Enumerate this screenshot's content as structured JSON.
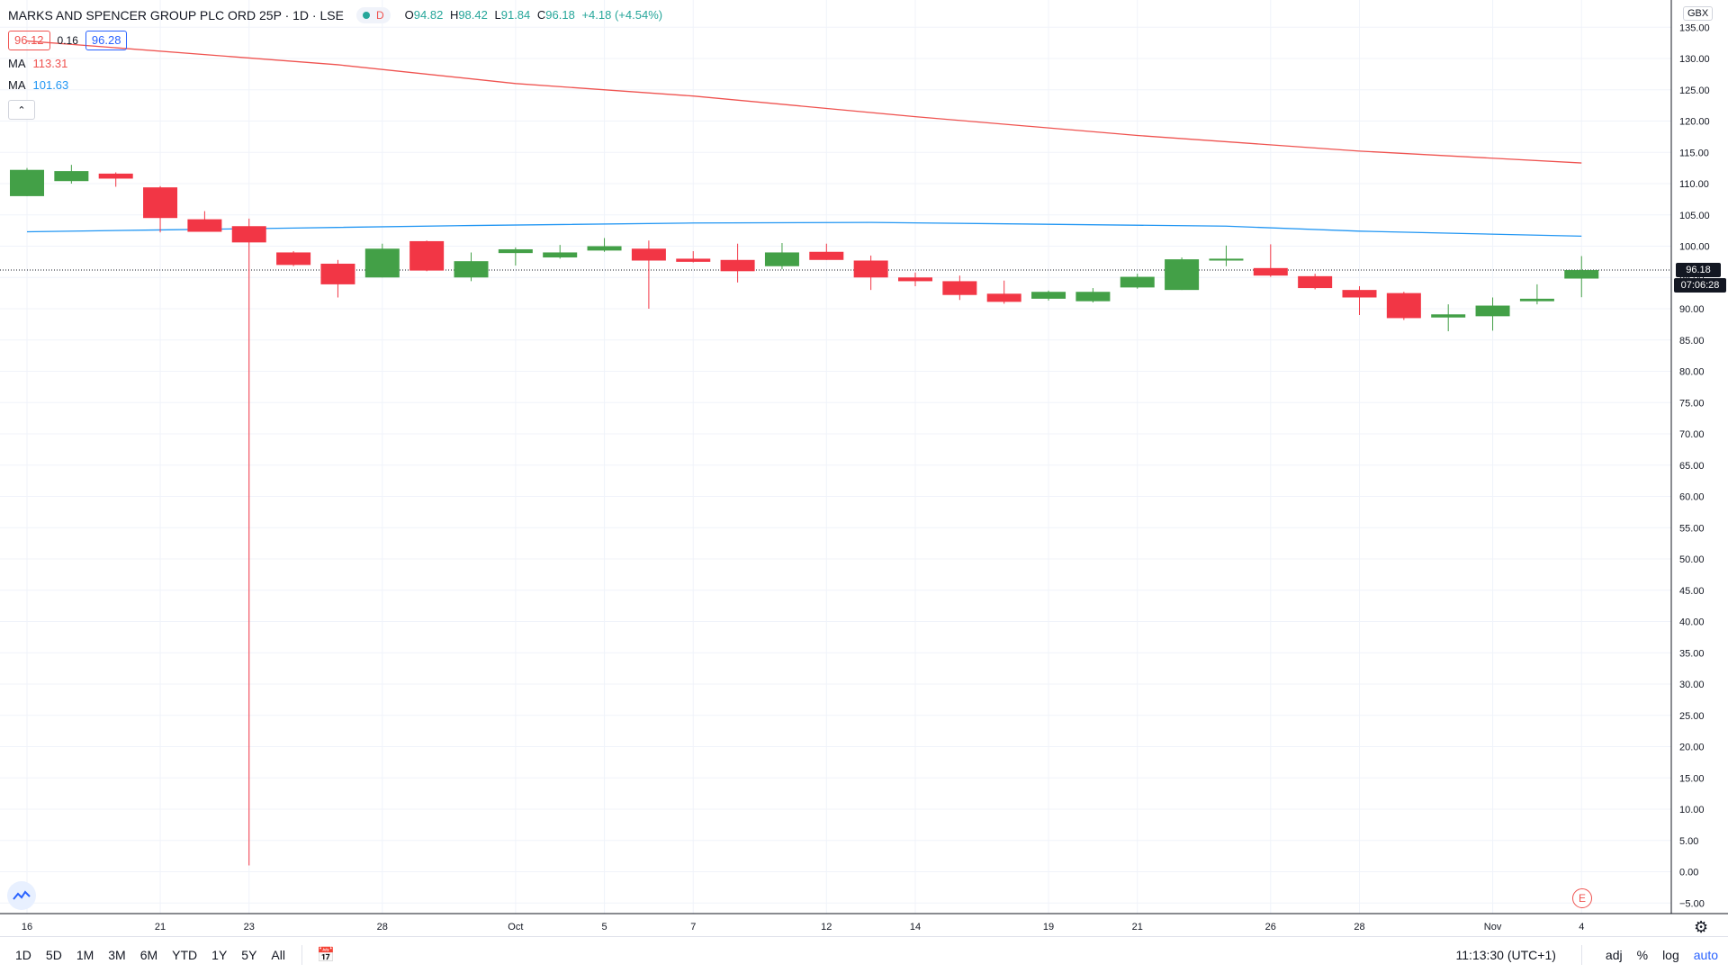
{
  "header": {
    "symbol": "MARKS AND SPENCER GROUP PLC ORD 25P",
    "interval": "1D",
    "exchange": "LSE",
    "market_status_letter": "D",
    "ohlc": {
      "o_label": "O",
      "o": "94.82",
      "h_label": "H",
      "h": "98.42",
      "l_label": "L",
      "l": "91.84",
      "c_label": "C",
      "c": "96.18",
      "change": "+4.18 (+4.54%)"
    },
    "bid": "96.12",
    "spread": "0.16",
    "ask": "96.28",
    "ma1": {
      "label": "MA",
      "value": "113.31",
      "color": "#ef5350"
    },
    "ma2": {
      "label": "MA",
      "value": "101.63",
      "color": "#2196f3"
    }
  },
  "price_axis": {
    "currency": "GBX",
    "last_price": "96.18",
    "countdown": "07:06:28"
  },
  "earnings_marker": "E",
  "bottom_bar": {
    "ranges": [
      "1D",
      "5D",
      "1M",
      "3M",
      "6M",
      "YTD",
      "1Y",
      "5Y",
      "All"
    ],
    "time": "11:13:30 (UTC+1)",
    "tools": {
      "adj": "adj",
      "pct": "%",
      "log": "log",
      "auto": "auto"
    }
  },
  "chart_data": {
    "type": "candlestick",
    "y_ticks": [
      "135.00",
      "130.00",
      "125.00",
      "120.00",
      "115.00",
      "110.00",
      "105.00",
      "100.00",
      "95.00",
      "90.00",
      "85.00",
      "80.00",
      "75.00",
      "70.00",
      "65.00",
      "60.00",
      "55.00",
      "50.00",
      "45.00",
      "40.00",
      "35.00",
      "30.00",
      "25.00",
      "20.00",
      "15.00",
      "10.00",
      "5.00",
      "0.00",
      "−5.00"
    ],
    "ylim": [
      -5,
      136
    ],
    "x_labels": [
      {
        "label": "16",
        "index": 0
      },
      {
        "label": "21",
        "index": 3
      },
      {
        "label": "23",
        "index": 5
      },
      {
        "label": "28",
        "index": 8
      },
      {
        "label": "Oct",
        "index": 11
      },
      {
        "label": "5",
        "index": 13
      },
      {
        "label": "7",
        "index": 15
      },
      {
        "label": "12",
        "index": 18
      },
      {
        "label": "14",
        "index": 20
      },
      {
        "label": "19",
        "index": 23
      },
      {
        "label": "21",
        "index": 25
      },
      {
        "label": "26",
        "index": 28
      },
      {
        "label": "28",
        "index": 30
      },
      {
        "label": "Nov",
        "index": 33
      },
      {
        "label": "4",
        "index": 35
      }
    ],
    "up_color": "#43a047",
    "down_color": "#f23645",
    "candles": [
      {
        "o": 108.0,
        "h": 112.5,
        "l": 108.0,
        "c": 112.2
      },
      {
        "o": 110.4,
        "h": 113.0,
        "l": 110.0,
        "c": 112.0
      },
      {
        "o": 111.6,
        "h": 111.8,
        "l": 109.5,
        "c": 110.8
      },
      {
        "o": 109.4,
        "h": 109.6,
        "l": 102.2,
        "c": 104.5
      },
      {
        "o": 104.3,
        "h": 105.6,
        "l": 102.3,
        "c": 102.3
      },
      {
        "o": 103.2,
        "h": 104.4,
        "l": 1.0,
        "c": 100.6
      },
      {
        "o": 99.0,
        "h": 99.2,
        "l": 96.8,
        "c": 97.0
      },
      {
        "o": 97.2,
        "h": 97.8,
        "l": 91.8,
        "c": 93.9
      },
      {
        "o": 95.0,
        "h": 100.4,
        "l": 95.0,
        "c": 99.6
      },
      {
        "o": 100.8,
        "h": 100.9,
        "l": 96.0,
        "c": 96.1
      },
      {
        "o": 95.0,
        "h": 99.0,
        "l": 94.4,
        "c": 97.6
      },
      {
        "o": 98.9,
        "h": 99.8,
        "l": 96.9,
        "c": 99.5
      },
      {
        "o": 98.2,
        "h": 100.2,
        "l": 98.0,
        "c": 99.0
      },
      {
        "o": 99.3,
        "h": 101.3,
        "l": 99.1,
        "c": 100.0
      },
      {
        "o": 99.6,
        "h": 100.9,
        "l": 90.0,
        "c": 97.7
      },
      {
        "o": 98.0,
        "h": 99.2,
        "l": 97.4,
        "c": 97.5
      },
      {
        "o": 97.8,
        "h": 100.4,
        "l": 94.2,
        "c": 96.0
      },
      {
        "o": 96.8,
        "h": 100.5,
        "l": 96.3,
        "c": 99.0
      },
      {
        "o": 99.1,
        "h": 100.4,
        "l": 97.8,
        "c": 97.8
      },
      {
        "o": 97.7,
        "h": 98.5,
        "l": 93.0,
        "c": 95.0
      },
      {
        "o": 95.0,
        "h": 95.8,
        "l": 93.6,
        "c": 94.4
      },
      {
        "o": 94.4,
        "h": 95.3,
        "l": 91.4,
        "c": 92.2
      },
      {
        "o": 92.4,
        "h": 94.5,
        "l": 90.8,
        "c": 91.1
      },
      {
        "o": 91.6,
        "h": 92.9,
        "l": 91.3,
        "c": 92.7
      },
      {
        "o": 91.2,
        "h": 93.3,
        "l": 91.0,
        "c": 92.7
      },
      {
        "o": 93.4,
        "h": 95.6,
        "l": 93.2,
        "c": 95.1
      },
      {
        "o": 93.0,
        "h": 98.2,
        "l": 93.0,
        "c": 97.9
      },
      {
        "o": 97.7,
        "h": 100.1,
        "l": 96.8,
        "c": 98.0
      },
      {
        "o": 96.5,
        "h": 100.3,
        "l": 95.1,
        "c": 95.3
      },
      {
        "o": 95.2,
        "h": 95.6,
        "l": 93.1,
        "c": 93.3
      },
      {
        "o": 93.0,
        "h": 93.6,
        "l": 89.0,
        "c": 91.8
      },
      {
        "o": 92.5,
        "h": 92.7,
        "l": 88.2,
        "c": 88.5
      },
      {
        "o": 88.6,
        "h": 90.7,
        "l": 86.4,
        "c": 89.1
      },
      {
        "o": 88.8,
        "h": 91.8,
        "l": 86.5,
        "c": 90.5
      },
      {
        "o": 91.2,
        "h": 93.9,
        "l": 90.7,
        "c": 91.6
      },
      {
        "o": 94.82,
        "h": 98.42,
        "l": 91.84,
        "c": 96.18
      }
    ],
    "ma_slow": {
      "color": "#ef5350",
      "points": [
        [
          0,
          132.8
        ],
        [
          7,
          129.0
        ],
        [
          11,
          126.0
        ],
        [
          15,
          124.0
        ],
        [
          20,
          120.7
        ],
        [
          25,
          117.7
        ],
        [
          30,
          115.2
        ],
        [
          35,
          113.3
        ]
      ]
    },
    "ma_fast": {
      "color": "#2196f3",
      "points": [
        [
          0,
          102.3
        ],
        [
          3,
          102.6
        ],
        [
          6,
          102.9
        ],
        [
          10,
          103.3
        ],
        [
          15,
          103.7
        ],
        [
          19,
          103.8
        ],
        [
          23,
          103.5
        ],
        [
          27,
          103.2
        ],
        [
          30,
          102.4
        ],
        [
          35,
          101.6
        ]
      ]
    }
  }
}
